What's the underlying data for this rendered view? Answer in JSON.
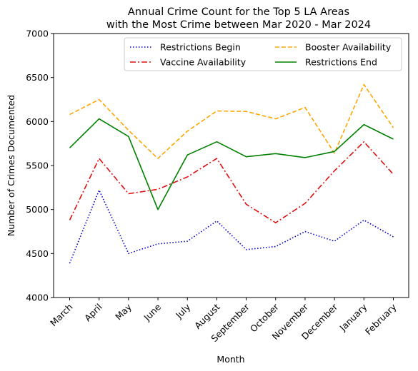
{
  "chart_data": {
    "type": "line",
    "title_line1": "Annual Crime Count for the Top 5 LA Areas",
    "title_line2": "with the Most Crime between Mar 2020 - Mar 2024",
    "xlabel": "Month",
    "ylabel": "Number of Crimes Documented",
    "categories": [
      "March",
      "April",
      "May",
      "June",
      "July",
      "August",
      "September",
      "October",
      "November",
      "December",
      "January",
      "February"
    ],
    "ylim": [
      4000,
      7000
    ],
    "yticks": [
      4000,
      4500,
      5000,
      5500,
      6000,
      6500,
      7000
    ],
    "grid": false,
    "legend_position": "top-right",
    "series": [
      {
        "name": "Restrictions Begin",
        "color": "#0000cc",
        "dash": "dotted",
        "values": [
          4390,
          5220,
          4500,
          4610,
          4640,
          4870,
          4545,
          4580,
          4750,
          4640,
          4880,
          4690
        ]
      },
      {
        "name": "Vaccine Availability",
        "color": "#dd1111",
        "dash": "dashdot",
        "values": [
          4880,
          5580,
          5180,
          5230,
          5370,
          5580,
          5060,
          4850,
          5070,
          5440,
          5770,
          5400
        ]
      },
      {
        "name": "Booster Availability",
        "color": "#ffa500",
        "dash": "dashed",
        "values": [
          6080,
          6250,
          5900,
          5580,
          5890,
          6120,
          6115,
          6030,
          6160,
          5640,
          6420,
          5930
        ]
      },
      {
        "name": "Restrictions End",
        "color": "#008000",
        "dash": "solid",
        "values": [
          5700,
          6030,
          5830,
          5000,
          5620,
          5770,
          5600,
          5635,
          5590,
          5660,
          5965,
          5800
        ]
      }
    ]
  }
}
